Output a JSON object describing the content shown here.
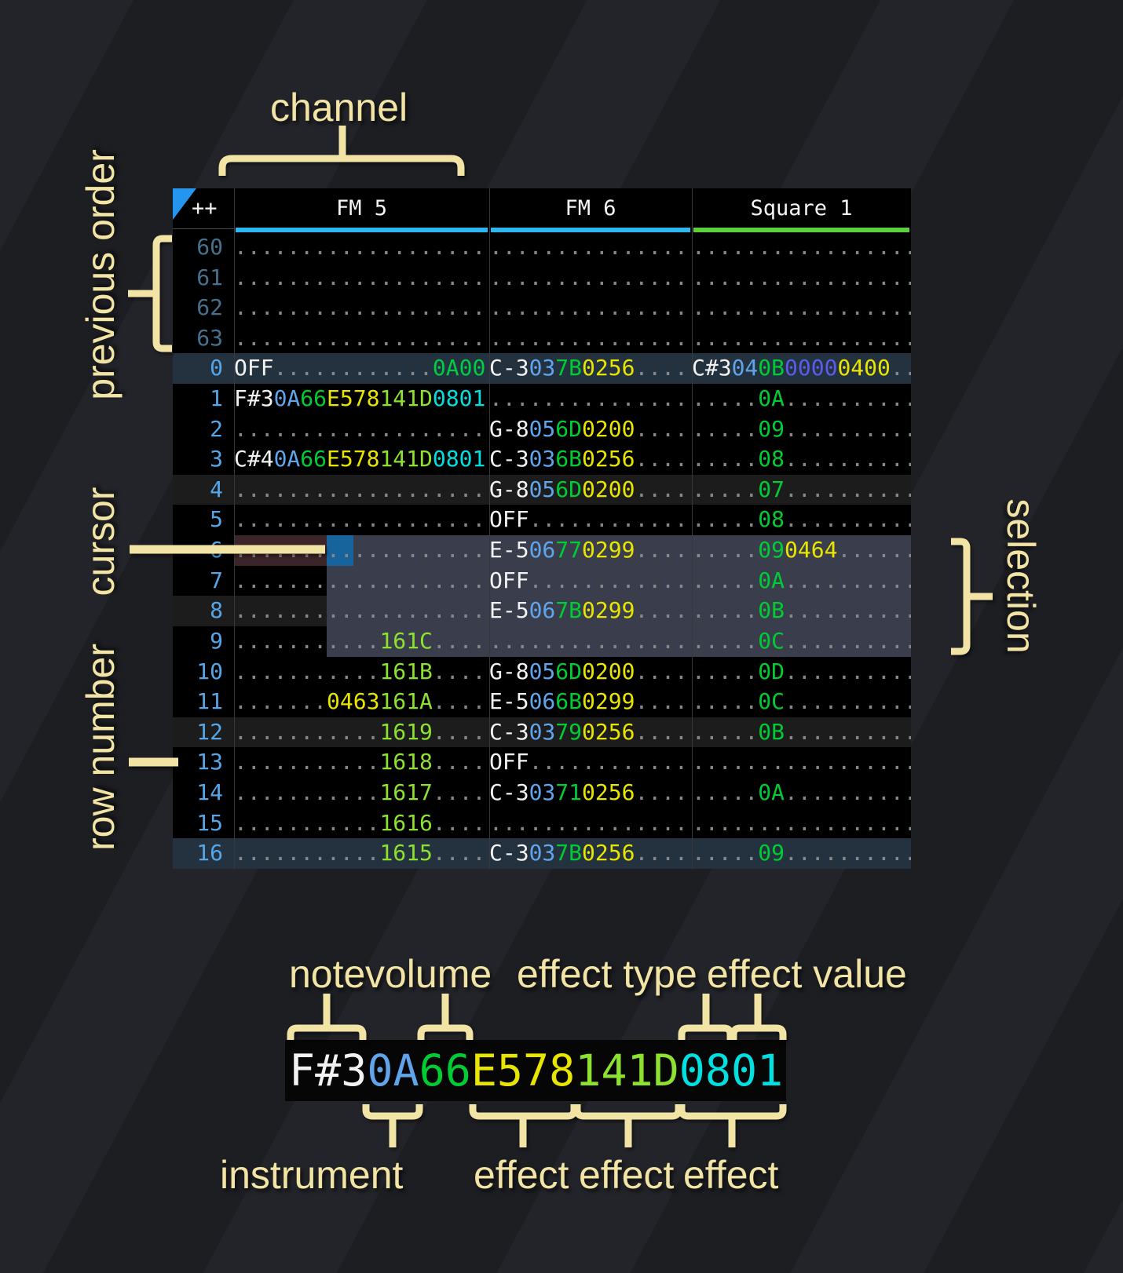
{
  "annotations": {
    "channel": "channel",
    "previous_order": "previous order",
    "cursor": "cursor",
    "row_number": "row number",
    "selection": "selection",
    "note": "note",
    "volume": "volume",
    "effect_type": "effect type",
    "effect_value": "effect value",
    "instrument": "instrument",
    "effect1": "effect",
    "effect2": "effect",
    "effect3": "effect"
  },
  "colors": {
    "fm_channel_underline": "#2bb8f0",
    "square_channel_underline": "#5ad13c",
    "annotation_label": "#f2e4a5",
    "cursor_block": "#17639c",
    "selection_background": "#3a3e4c",
    "cursor_row_highlight": "#3c2528",
    "note_text": "#f2f2f2",
    "instrument_text": "#60a5ec",
    "volume_text": "#00cc33",
    "effect_yellow": "#e8e500",
    "effect_light_green": "#8ce22e",
    "effect_cyan": "#00e0e0",
    "effect_indigo": "#5c5cea"
  },
  "pattern": {
    "corner": "++",
    "channels": [
      {
        "label": "FM 5",
        "color": "#2bb8f0"
      },
      {
        "label": "FM 6",
        "color": "#2bb8f0"
      },
      {
        "label": "Square 1",
        "color": "#5ad13c"
      }
    ],
    "rows": [
      {
        "n": "60",
        "prev": true,
        "hl": 0,
        "cells": [
          [
            [
              "...................",
              "dot"
            ]
          ],
          [
            [
              "...............",
              "dot"
            ]
          ],
          [
            [
              ".................",
              "dot"
            ]
          ]
        ]
      },
      {
        "n": "61",
        "prev": true,
        "hl": 0,
        "cells": [
          [
            [
              "...................",
              "dot"
            ]
          ],
          [
            [
              "...............",
              "dot"
            ]
          ],
          [
            [
              ".................",
              "dot"
            ]
          ]
        ]
      },
      {
        "n": "62",
        "prev": true,
        "hl": 0,
        "cells": [
          [
            [
              "...................",
              "dot"
            ]
          ],
          [
            [
              "...............",
              "dot"
            ]
          ],
          [
            [
              ".................",
              "dot"
            ]
          ]
        ]
      },
      {
        "n": "63",
        "prev": true,
        "hl": 0,
        "cells": [
          [
            [
              "...................",
              "dot"
            ]
          ],
          [
            [
              "...............",
              "dot"
            ]
          ],
          [
            [
              ".................",
              "dot"
            ]
          ]
        ]
      },
      {
        "n": "0",
        "prev": false,
        "hl": 2,
        "cells": [
          [
            [
              "OFF",
              "note"
            ],
            [
              "............",
              "dot"
            ],
            [
              "0A00",
              "fxv"
            ]
          ],
          [
            [
              "C-3",
              "note"
            ],
            [
              "03",
              "ins"
            ],
            [
              "7B",
              "vol"
            ],
            [
              "0256",
              "fxy"
            ],
            [
              "....",
              "dot"
            ]
          ],
          [
            [
              "C#3",
              "note"
            ],
            [
              "04",
              "ins"
            ],
            [
              "0B",
              "vol"
            ],
            [
              "0000",
              "fxi"
            ],
            [
              "0400",
              "fxy"
            ],
            [
              "..",
              "dot"
            ]
          ]
        ]
      },
      {
        "n": "1",
        "prev": false,
        "hl": 0,
        "cells": [
          [
            [
              "F#3",
              "note"
            ],
            [
              "0A",
              "ins"
            ],
            [
              "66",
              "vol"
            ],
            [
              "E578",
              "fxy"
            ],
            [
              "141D",
              "fxg"
            ],
            [
              "0801",
              "fxc"
            ]
          ],
          [
            [
              "...............",
              "dot"
            ]
          ],
          [
            [
              ".....",
              "dot"
            ],
            [
              "0A",
              "vol"
            ],
            [
              "..........",
              "dot"
            ]
          ]
        ]
      },
      {
        "n": "2",
        "prev": false,
        "hl": 0,
        "cells": [
          [
            [
              "...................",
              "dot"
            ]
          ],
          [
            [
              "G-8",
              "note"
            ],
            [
              "05",
              "ins"
            ],
            [
              "6D",
              "vol"
            ],
            [
              "0200",
              "fxy"
            ],
            [
              "....",
              "dot"
            ]
          ],
          [
            [
              ".....",
              "dot"
            ],
            [
              "09",
              "vol"
            ],
            [
              "..........",
              "dot"
            ]
          ]
        ]
      },
      {
        "n": "3",
        "prev": false,
        "hl": 0,
        "cells": [
          [
            [
              "C#4",
              "note"
            ],
            [
              "0A",
              "ins"
            ],
            [
              "66",
              "vol"
            ],
            [
              "E578",
              "fxy"
            ],
            [
              "141D",
              "fxg"
            ],
            [
              "0801",
              "fxc"
            ]
          ],
          [
            [
              "C-3",
              "note"
            ],
            [
              "03",
              "ins"
            ],
            [
              "6B",
              "vol"
            ],
            [
              "0256",
              "fxy"
            ],
            [
              "....",
              "dot"
            ]
          ],
          [
            [
              ".....",
              "dot"
            ],
            [
              "08",
              "vol"
            ],
            [
              "..........",
              "dot"
            ]
          ]
        ]
      },
      {
        "n": "4",
        "prev": false,
        "hl": 1,
        "cells": [
          [
            [
              "...................",
              "dot"
            ]
          ],
          [
            [
              "G-8",
              "note"
            ],
            [
              "05",
              "ins"
            ],
            [
              "6D",
              "vol"
            ],
            [
              "0200",
              "fxy"
            ],
            [
              "....",
              "dot"
            ]
          ],
          [
            [
              ".....",
              "dot"
            ],
            [
              "07",
              "vol"
            ],
            [
              "..........",
              "dot"
            ]
          ]
        ]
      },
      {
        "n": "5",
        "prev": false,
        "hl": 0,
        "cells": [
          [
            [
              "...................",
              "dot"
            ]
          ],
          [
            [
              "OFF",
              "note"
            ],
            [
              "............",
              "dot"
            ]
          ],
          [
            [
              ".....",
              "dot"
            ],
            [
              "08",
              "vol"
            ],
            [
              "..........",
              "dot"
            ]
          ]
        ]
      },
      {
        "n": "6",
        "prev": false,
        "hl": 0,
        "cells": [
          [
            [
              "...................",
              "dot"
            ]
          ],
          [
            [
              "E-5",
              "note"
            ],
            [
              "06",
              "ins"
            ],
            [
              "77",
              "vol"
            ],
            [
              "0299",
              "fxy"
            ],
            [
              "....",
              "dot"
            ]
          ],
          [
            [
              ".....",
              "dot"
            ],
            [
              "09",
              "vol"
            ],
            [
              "0464",
              "fxy"
            ],
            [
              "......",
              "dot"
            ]
          ]
        ]
      },
      {
        "n": "7",
        "prev": false,
        "hl": 0,
        "cells": [
          [
            [
              "...................",
              "dot"
            ]
          ],
          [
            [
              "OFF",
              "note"
            ],
            [
              "............",
              "dot"
            ]
          ],
          [
            [
              ".....",
              "dot"
            ],
            [
              "0A",
              "vol"
            ],
            [
              "..........",
              "dot"
            ]
          ]
        ]
      },
      {
        "n": "8",
        "prev": false,
        "hl": 1,
        "cells": [
          [
            [
              "...................",
              "dot"
            ]
          ],
          [
            [
              "E-5",
              "note"
            ],
            [
              "06",
              "ins"
            ],
            [
              "7B",
              "vol"
            ],
            [
              "0299",
              "fxy"
            ],
            [
              "....",
              "dot"
            ]
          ],
          [
            [
              ".....",
              "dot"
            ],
            [
              "0B",
              "vol"
            ],
            [
              "..........",
              "dot"
            ]
          ]
        ]
      },
      {
        "n": "9",
        "prev": false,
        "hl": 0,
        "cells": [
          [
            [
              "...........",
              "dot"
            ],
            [
              "161C",
              "fxg"
            ],
            [
              "....",
              "dot"
            ]
          ],
          [
            [
              "...............",
              "dot"
            ]
          ],
          [
            [
              ".....",
              "dot"
            ],
            [
              "0C",
              "vol"
            ],
            [
              "..........",
              "dot"
            ]
          ]
        ]
      },
      {
        "n": "10",
        "prev": false,
        "hl": 0,
        "cells": [
          [
            [
              "...........",
              "dot"
            ],
            [
              "161B",
              "fxg"
            ],
            [
              "....",
              "dot"
            ]
          ],
          [
            [
              "G-8",
              "note"
            ],
            [
              "05",
              "ins"
            ],
            [
              "6D",
              "vol"
            ],
            [
              "0200",
              "fxy"
            ],
            [
              "....",
              "dot"
            ]
          ],
          [
            [
              ".....",
              "dot"
            ],
            [
              "0D",
              "vol"
            ],
            [
              "..........",
              "dot"
            ]
          ]
        ]
      },
      {
        "n": "11",
        "prev": false,
        "hl": 0,
        "cells": [
          [
            [
              ".......",
              "dot"
            ],
            [
              "0463",
              "fxy"
            ],
            [
              "161A",
              "fxg"
            ],
            [
              "....",
              "dot"
            ]
          ],
          [
            [
              "E-5",
              "note"
            ],
            [
              "06",
              "ins"
            ],
            [
              "6B",
              "vol"
            ],
            [
              "0299",
              "fxy"
            ],
            [
              "....",
              "dot"
            ]
          ],
          [
            [
              ".....",
              "dot"
            ],
            [
              "0C",
              "vol"
            ],
            [
              "..........",
              "dot"
            ]
          ]
        ]
      },
      {
        "n": "12",
        "prev": false,
        "hl": 1,
        "cells": [
          [
            [
              "...........",
              "dot"
            ],
            [
              "1619",
              "fxg"
            ],
            [
              "....",
              "dot"
            ]
          ],
          [
            [
              "C-3",
              "note"
            ],
            [
              "03",
              "ins"
            ],
            [
              "79",
              "vol"
            ],
            [
              "0256",
              "fxy"
            ],
            [
              "....",
              "dot"
            ]
          ],
          [
            [
              ".....",
              "dot"
            ],
            [
              "0B",
              "vol"
            ],
            [
              "..........",
              "dot"
            ]
          ]
        ]
      },
      {
        "n": "13",
        "prev": false,
        "hl": 0,
        "cells": [
          [
            [
              "...........",
              "dot"
            ],
            [
              "1618",
              "fxg"
            ],
            [
              "....",
              "dot"
            ]
          ],
          [
            [
              "OFF",
              "note"
            ],
            [
              "............",
              "dot"
            ]
          ],
          [
            [
              ".................",
              "dot"
            ]
          ]
        ]
      },
      {
        "n": "14",
        "prev": false,
        "hl": 0,
        "cells": [
          [
            [
              "...........",
              "dot"
            ],
            [
              "1617",
              "fxg"
            ],
            [
              "....",
              "dot"
            ]
          ],
          [
            [
              "C-3",
              "note"
            ],
            [
              "03",
              "ins"
            ],
            [
              "71",
              "vol"
            ],
            [
              "0256",
              "fxy"
            ],
            [
              "....",
              "dot"
            ]
          ],
          [
            [
              ".....",
              "dot"
            ],
            [
              "0A",
              "vol"
            ],
            [
              "..........",
              "dot"
            ]
          ]
        ]
      },
      {
        "n": "15",
        "prev": false,
        "hl": 0,
        "cells": [
          [
            [
              "...........",
              "dot"
            ],
            [
              "1616",
              "fxg"
            ],
            [
              "....",
              "dot"
            ]
          ],
          [
            [
              "...............",
              "dot"
            ]
          ],
          [
            [
              ".................",
              "dot"
            ]
          ]
        ]
      },
      {
        "n": "16",
        "prev": false,
        "hl": 2,
        "cells": [
          [
            [
              "...........",
              "dot"
            ],
            [
              "1615",
              "fxg"
            ],
            [
              "....",
              "dot"
            ]
          ],
          [
            [
              "C-3",
              "note"
            ],
            [
              "03",
              "ins"
            ],
            [
              "7B",
              "vol"
            ],
            [
              "0256",
              "fxy"
            ],
            [
              "....",
              "dot"
            ]
          ],
          [
            [
              ".....",
              "dot"
            ],
            [
              "09",
              "vol"
            ],
            [
              "..........",
              "dot"
            ]
          ]
        ]
      }
    ]
  },
  "breakdown": {
    "segments": [
      [
        "F#3",
        "note"
      ],
      [
        "0A",
        "ins"
      ],
      [
        "66",
        "vol"
      ],
      [
        "E578",
        "fxy"
      ],
      [
        "141D",
        "fxg"
      ],
      [
        "0801",
        "fxc"
      ]
    ]
  }
}
